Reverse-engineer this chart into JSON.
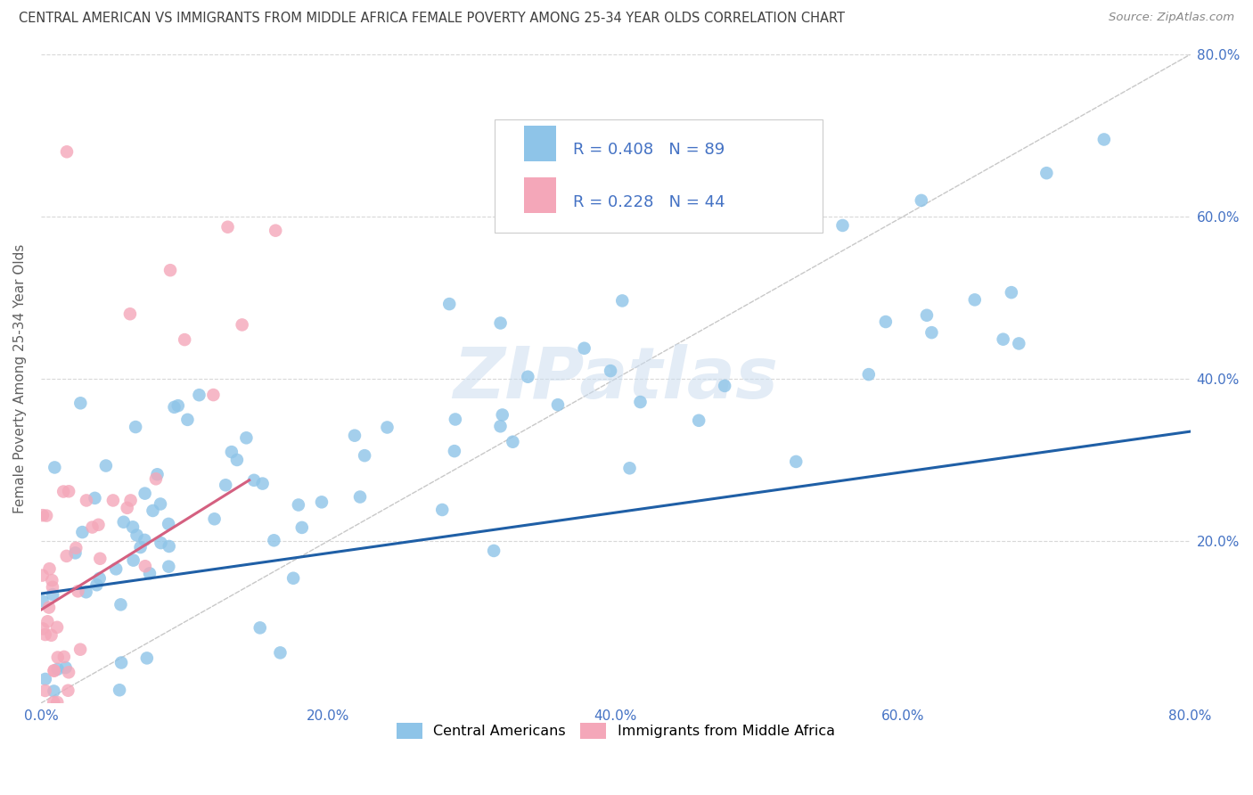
{
  "title": "CENTRAL AMERICAN VS IMMIGRANTS FROM MIDDLE AFRICA FEMALE POVERTY AMONG 25-34 YEAR OLDS CORRELATION CHART",
  "source": "Source: ZipAtlas.com",
  "ylabel": "Female Poverty Among 25-34 Year Olds",
  "xlim": [
    0,
    0.8
  ],
  "ylim": [
    0,
    0.8
  ],
  "xtick_labels": [
    "0.0%",
    "20.0%",
    "40.0%",
    "60.0%",
    "80.0%"
  ],
  "xtick_vals": [
    0.0,
    0.2,
    0.4,
    0.6,
    0.8
  ],
  "ytick_labels": [
    "20.0%",
    "40.0%",
    "60.0%",
    "80.0%"
  ],
  "ytick_vals": [
    0.2,
    0.4,
    0.6,
    0.8
  ],
  "blue_color": "#8ec4e8",
  "pink_color": "#f4a7b9",
  "blue_line_color": "#1f5fa6",
  "pink_line_color": "#d46080",
  "diagonal_color": "#c8c8c8",
  "R_blue": 0.408,
  "N_blue": 89,
  "R_pink": 0.228,
  "N_pink": 44,
  "legend_label_blue": "Central Americans",
  "legend_label_pink": "Immigrants from Middle Africa",
  "watermark_text": "ZIPatlas",
  "background_color": "#ffffff",
  "grid_color": "#d8d8d8",
  "tick_color": "#4472c4",
  "title_color": "#404040",
  "source_color": "#888888",
  "ylabel_color": "#606060",
  "legend_text_color": "#4472c4"
}
